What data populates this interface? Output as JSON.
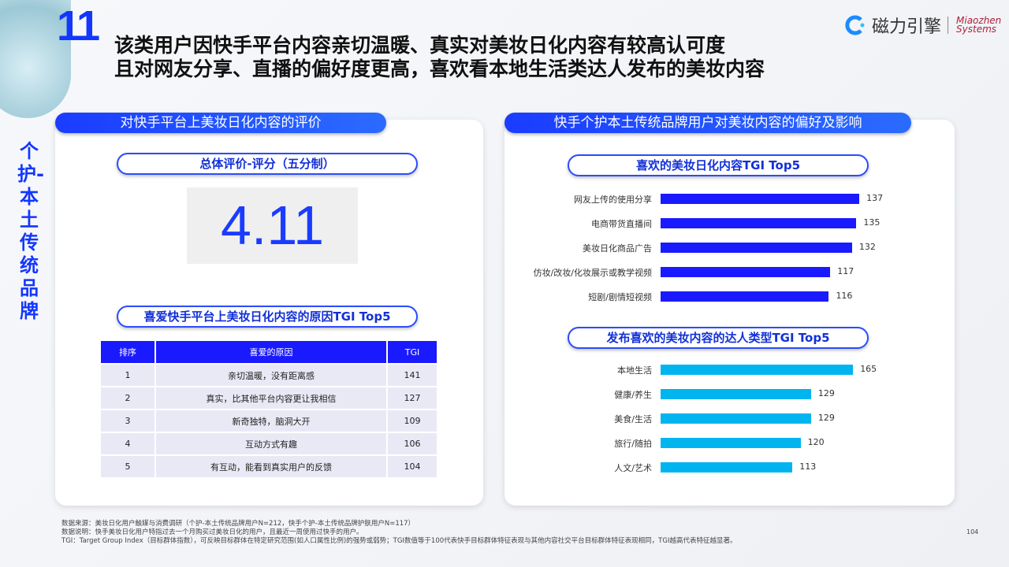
{
  "slide": {
    "number": "11",
    "title_line1": "该类用户因快手平台内容亲切温暖、真实对美妆日化内容有较高认可度",
    "title_line2": "且对网友分享、直播的偏好度更高，喜欢看本地生活类达人发布的美妆内容",
    "side_label": "个护-本土传统品牌",
    "page": "104"
  },
  "logo": {
    "cn": "磁力引擎",
    "en_line1": "Miaozhen",
    "en_line2": "Systems"
  },
  "left": {
    "header": "对快手平台上美妆日化内容的评价",
    "score_title": "总体评价-评分（五分制）",
    "score": "4.11",
    "reasons_title": "喜爱快手平台上美妆日化内容的原因TGI Top5",
    "table": {
      "columns": [
        "排序",
        "喜爱的原因",
        "TGI"
      ],
      "rows": [
        [
          "1",
          "亲切温暖，没有距离感",
          "141"
        ],
        [
          "2",
          "真实，比其他平台内容更让我相信",
          "127"
        ],
        [
          "3",
          "新奇独特，脑洞大开",
          "109"
        ],
        [
          "4",
          "互动方式有趣",
          "106"
        ],
        [
          "5",
          "有互动，能看到真实用户的反馈",
          "104"
        ]
      ]
    }
  },
  "right": {
    "header": "快手个护本土传统品牌用户对美妆内容的偏好及影响"
  },
  "chart_data": [
    {
      "type": "bar",
      "orientation": "horizontal",
      "title": "喜欢的美妆日化内容TGI Top5",
      "categories": [
        "网友上传的使用分享",
        "电商带货直播间",
        "美妆日化商品广告",
        "仿妆/改妆/化妆展示或教学视频",
        "短剧/剧情短视频"
      ],
      "values": [
        137,
        135,
        132,
        117,
        116
      ],
      "color": "#1a1aff",
      "data_labels": true
    },
    {
      "type": "bar",
      "orientation": "horizontal",
      "title": "发布喜欢的美妆内容的达人类型TGI Top5",
      "categories": [
        "本地生活",
        "健康/养生",
        "美食/生活",
        "旅行/随拍",
        "人文/艺术"
      ],
      "values": [
        165,
        129,
        129,
        120,
        113
      ],
      "color": "#00b4f0",
      "data_labels": true
    }
  ],
  "footnotes": [
    "数据来源：美妆日化用户触媒与消费调研（个护-本土传统品牌用户N=212，快手个护-本土传统品牌护肤用户N=117）",
    "数据说明：快手美妆日化用户特指过去一个月购买过美妆日化的用户，且最近一周使用过快手的用户。",
    "TGI：Target Group Index（目标群体指数），可反映目标群体在特定研究范围(如人口属性比例)的强势或弱势；TGI数值等于100代表快手目标群体特征表现与其他内容社交平台目标群体特征表现相同，TGI越高代表特征越显著。"
  ]
}
